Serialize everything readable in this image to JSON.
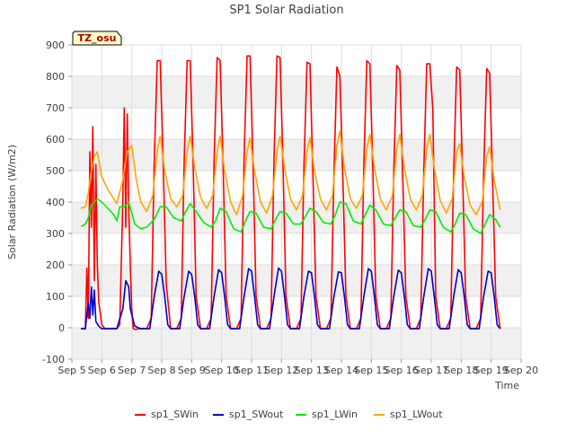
{
  "chart_data": {
    "type": "line",
    "title": "SP1 Solar Radiation",
    "xlabel": "Time",
    "ylabel": "Solar Radiation (W/m2)",
    "xlim": [
      5,
      20
    ],
    "ylim": [
      -100,
      900
    ],
    "x_ticks": [
      5,
      6,
      7,
      8,
      9,
      10,
      11,
      12,
      13,
      14,
      15,
      16,
      17,
      18,
      19,
      20
    ],
    "x_tick_labels": [
      "Sep 5",
      "Sep 6",
      "Sep 7",
      "Sep 8",
      "Sep 9",
      "Sep 10",
      "Sep 11",
      "Sep 12",
      "Sep 13",
      "Sep 14",
      "Sep 15",
      "Sep 16",
      "Sep 17",
      "Sep 18",
      "Sep 19",
      "Sep 20"
    ],
    "y_ticks": [
      -100,
      0,
      100,
      200,
      300,
      400,
      500,
      600,
      700,
      800,
      900
    ],
    "grid": true,
    "legend_position": "bottom",
    "annotation": "TZ_osu",
    "series": [
      {
        "name": "sp1_SWin",
        "color": "#ff0000",
        "x": [
          5.3,
          5.45,
          5.5,
          5.55,
          5.6,
          5.65,
          5.7,
          5.75,
          5.8,
          5.85,
          5.9,
          6.0,
          6.1,
          6.2,
          6.5,
          6.6,
          6.7,
          6.75,
          6.8,
          6.85,
          6.9,
          6.95,
          7.0,
          7.05,
          7.1,
          7.15,
          7.2,
          7.3,
          7.5,
          7.65,
          7.75,
          7.85,
          7.95,
          8.05,
          8.15,
          8.3,
          8.5,
          8.65,
          8.75,
          8.85,
          8.95,
          9.05,
          9.15,
          9.3,
          9.5,
          9.65,
          9.75,
          9.85,
          9.95,
          10.05,
          10.15,
          10.3,
          10.5,
          10.65,
          10.75,
          10.85,
          10.95,
          11.05,
          11.15,
          11.3,
          11.5,
          11.65,
          11.75,
          11.85,
          11.95,
          12.05,
          12.15,
          12.3,
          12.5,
          12.65,
          12.75,
          12.85,
          12.95,
          13.05,
          13.15,
          13.3,
          13.5,
          13.65,
          13.75,
          13.85,
          13.95,
          14.05,
          14.15,
          14.3,
          14.5,
          14.65,
          14.75,
          14.85,
          14.95,
          15.05,
          15.15,
          15.3,
          15.5,
          15.65,
          15.75,
          15.85,
          15.95,
          16.05,
          16.15,
          16.3,
          16.5,
          16.65,
          16.75,
          16.85,
          16.95,
          17.05,
          17.15,
          17.3,
          17.5,
          17.65,
          17.75,
          17.85,
          17.95,
          18.05,
          18.15,
          18.3,
          18.5,
          18.65,
          18.75,
          18.85,
          18.95,
          19.05,
          19.15,
          19.3
        ],
        "values": [
          -3,
          -3,
          190,
          30,
          560,
          320,
          640,
          150,
          520,
          200,
          80,
          10,
          -3,
          -3,
          -3,
          10,
          400,
          700,
          320,
          680,
          380,
          200,
          60,
          -3,
          -5,
          -5,
          -3,
          -3,
          -3,
          30,
          530,
          850,
          850,
          520,
          140,
          -3,
          -3,
          30,
          530,
          850,
          850,
          520,
          100,
          -3,
          -3,
          30,
          530,
          860,
          850,
          520,
          100,
          -3,
          -3,
          30,
          540,
          865,
          865,
          520,
          100,
          -3,
          -3,
          30,
          540,
          865,
          860,
          520,
          100,
          -3,
          -3,
          30,
          510,
          845,
          840,
          490,
          100,
          -3,
          -3,
          30,
          490,
          830,
          800,
          470,
          100,
          -3,
          -3,
          30,
          520,
          850,
          840,
          500,
          100,
          -3,
          -3,
          30,
          500,
          835,
          820,
          480,
          100,
          -3,
          -3,
          30,
          500,
          840,
          840,
          700,
          100,
          -3,
          -3,
          30,
          500,
          830,
          820,
          480,
          100,
          -3,
          -3,
          30,
          490,
          825,
          810,
          470,
          100,
          -3
        ]
      },
      {
        "name": "sp1_SWout",
        "color": "#0000cc",
        "x": [
          5.3,
          5.45,
          5.55,
          5.6,
          5.65,
          5.7,
          5.75,
          5.8,
          5.9,
          6.0,
          6.5,
          6.7,
          6.8,
          6.9,
          6.95,
          7.1,
          7.3,
          7.6,
          7.75,
          7.9,
          8.0,
          8.1,
          8.2,
          8.3,
          8.6,
          8.75,
          8.9,
          9.0,
          9.1,
          9.2,
          9.3,
          9.6,
          9.75,
          9.9,
          10.0,
          10.1,
          10.2,
          10.3,
          10.6,
          10.75,
          10.9,
          11.0,
          11.1,
          11.2,
          11.3,
          11.6,
          11.75,
          11.9,
          12.0,
          12.1,
          12.2,
          12.3,
          12.6,
          12.75,
          12.9,
          13.0,
          13.1,
          13.2,
          13.3,
          13.6,
          13.75,
          13.9,
          14.0,
          14.1,
          14.2,
          14.3,
          14.6,
          14.75,
          14.9,
          15.0,
          15.1,
          15.2,
          15.3,
          15.6,
          15.75,
          15.9,
          16.0,
          16.1,
          16.2,
          16.3,
          16.6,
          16.75,
          16.9,
          17.0,
          17.1,
          17.2,
          17.3,
          17.6,
          17.75,
          17.9,
          18.0,
          18.1,
          18.2,
          18.3,
          18.6,
          18.75,
          18.9,
          19.0,
          19.1,
          19.2,
          19.3
        ],
        "values": [
          -3,
          -3,
          80,
          30,
          130,
          40,
          120,
          20,
          5,
          -3,
          -3,
          60,
          150,
          130,
          60,
          5,
          -3,
          -3,
          100,
          180,
          170,
          100,
          10,
          -3,
          -3,
          100,
          180,
          170,
          100,
          10,
          -3,
          -3,
          100,
          185,
          175,
          100,
          10,
          -3,
          -3,
          100,
          188,
          180,
          100,
          10,
          -3,
          -3,
          100,
          190,
          180,
          100,
          10,
          -3,
          -3,
          100,
          180,
          175,
          100,
          10,
          -3,
          -3,
          100,
          178,
          175,
          100,
          10,
          -3,
          -3,
          100,
          188,
          180,
          100,
          10,
          -3,
          -3,
          100,
          183,
          175,
          100,
          10,
          -3,
          -3,
          100,
          188,
          180,
          100,
          10,
          -3,
          -3,
          100,
          185,
          175,
          100,
          10,
          -3,
          -3,
          100,
          180,
          175,
          100,
          10,
          -3
        ]
      },
      {
        "name": "sp1_LWin",
        "color": "#00ee00",
        "x": [
          5.3,
          5.45,
          5.55,
          5.65,
          5.75,
          5.85,
          6.0,
          6.2,
          6.4,
          6.5,
          6.6,
          6.75,
          6.9,
          7.1,
          7.3,
          7.5,
          7.75,
          7.95,
          8.15,
          8.4,
          8.65,
          8.8,
          8.95,
          9.15,
          9.4,
          9.65,
          9.8,
          9.95,
          10.15,
          10.4,
          10.65,
          10.8,
          10.95,
          11.15,
          11.4,
          11.65,
          11.8,
          11.95,
          12.15,
          12.4,
          12.65,
          12.8,
          12.95,
          13.15,
          13.4,
          13.65,
          13.8,
          13.95,
          14.15,
          14.4,
          14.65,
          14.8,
          14.95,
          15.15,
          15.4,
          15.65,
          15.8,
          15.95,
          16.15,
          16.4,
          16.65,
          16.8,
          16.95,
          17.15,
          17.4,
          17.65,
          17.8,
          17.95,
          18.15,
          18.4,
          18.65,
          18.8,
          18.95,
          19.15,
          19.3
        ],
        "values": [
          322,
          330,
          350,
          390,
          400,
          410,
          400,
          380,
          360,
          340,
          385,
          385,
          400,
          330,
          315,
          320,
          345,
          385,
          385,
          350,
          340,
          370,
          395,
          370,
          335,
          320,
          340,
          380,
          370,
          315,
          305,
          340,
          370,
          365,
          320,
          315,
          345,
          370,
          365,
          330,
          330,
          355,
          380,
          370,
          335,
          330,
          360,
          400,
          395,
          340,
          330,
          360,
          390,
          375,
          330,
          325,
          350,
          375,
          370,
          325,
          320,
          345,
          375,
          370,
          320,
          305,
          330,
          365,
          360,
          315,
          300,
          330,
          360,
          345,
          320
        ]
      },
      {
        "name": "sp1_LWout",
        "color": "#ffa500",
        "x": [
          5.3,
          5.45,
          5.55,
          5.65,
          5.75,
          5.85,
          6.0,
          6.2,
          6.4,
          6.5,
          6.7,
          6.85,
          7.0,
          7.15,
          7.3,
          7.5,
          7.7,
          7.85,
          7.95,
          8.1,
          8.3,
          8.5,
          8.7,
          8.85,
          8.95,
          9.1,
          9.3,
          9.5,
          9.7,
          9.85,
          9.95,
          10.1,
          10.3,
          10.5,
          10.7,
          10.85,
          10.95,
          11.1,
          11.3,
          11.5,
          11.7,
          11.85,
          11.95,
          12.1,
          12.3,
          12.5,
          12.7,
          12.85,
          12.95,
          13.1,
          13.3,
          13.5,
          13.7,
          13.85,
          13.95,
          14.1,
          14.3,
          14.5,
          14.7,
          14.85,
          14.95,
          15.1,
          15.3,
          15.5,
          15.7,
          15.85,
          15.95,
          16.1,
          16.3,
          16.5,
          16.7,
          16.85,
          16.95,
          17.1,
          17.3,
          17.5,
          17.7,
          17.85,
          17.95,
          18.1,
          18.3,
          18.5,
          18.7,
          18.85,
          18.95,
          19.1,
          19.3
        ],
        "values": [
          380,
          385,
          430,
          500,
          545,
          560,
          480,
          440,
          410,
          395,
          470,
          560,
          580,
          470,
          400,
          370,
          420,
          560,
          610,
          500,
          410,
          385,
          420,
          560,
          610,
          510,
          415,
          380,
          420,
          560,
          610,
          500,
          400,
          360,
          420,
          560,
          605,
          500,
          400,
          365,
          420,
          560,
          610,
          510,
          410,
          375,
          420,
          560,
          605,
          500,
          410,
          375,
          420,
          580,
          625,
          510,
          410,
          380,
          420,
          570,
          615,
          510,
          410,
          375,
          420,
          570,
          615,
          510,
          410,
          375,
          420,
          570,
          615,
          510,
          405,
          365,
          410,
          560,
          585,
          480,
          390,
          360,
          400,
          545,
          575,
          470,
          375
        ]
      }
    ]
  }
}
